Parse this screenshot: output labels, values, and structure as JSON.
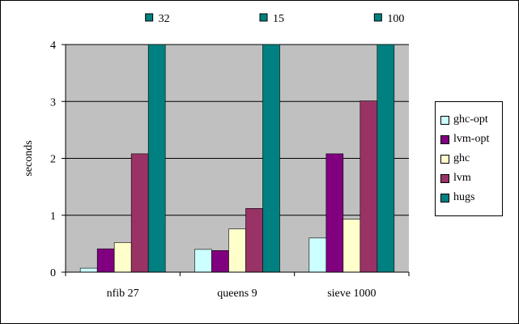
{
  "chart_data": {
    "type": "bar",
    "categories": [
      "nfib 27",
      "queens 9",
      "sieve 1000"
    ],
    "ylabel": "seconds",
    "xlabel": "",
    "ylim": [
      0,
      4
    ],
    "yticks": [
      0,
      1,
      2,
      3,
      4
    ],
    "grid": false,
    "plot_background": "#c0c0c0",
    "legend_position": "right",
    "series": [
      {
        "name": "ghc-opt",
        "color": "#ccffff",
        "values": [
          0.07,
          0.4,
          0.6
        ]
      },
      {
        "name": "lvm-opt",
        "color": "#800080",
        "values": [
          0.41,
          0.38,
          2.08
        ]
      },
      {
        "name": "ghc",
        "color": "#ffffcc",
        "values": [
          0.52,
          0.76,
          0.93
        ]
      },
      {
        "name": "lvm",
        "color": "#993366",
        "values": [
          2.08,
          1.12,
          3.01
        ]
      },
      {
        "name": "hugs",
        "color": "#008080",
        "values": [
          32,
          15,
          100
        ]
      }
    ],
    "clipped_annotations": [
      {
        "series": "hugs",
        "category": "nfib 27",
        "label": "32"
      },
      {
        "series": "hugs",
        "category": "queens 9",
        "label": "15"
      },
      {
        "series": "hugs",
        "category": "sieve 1000",
        "label": "100"
      }
    ]
  }
}
